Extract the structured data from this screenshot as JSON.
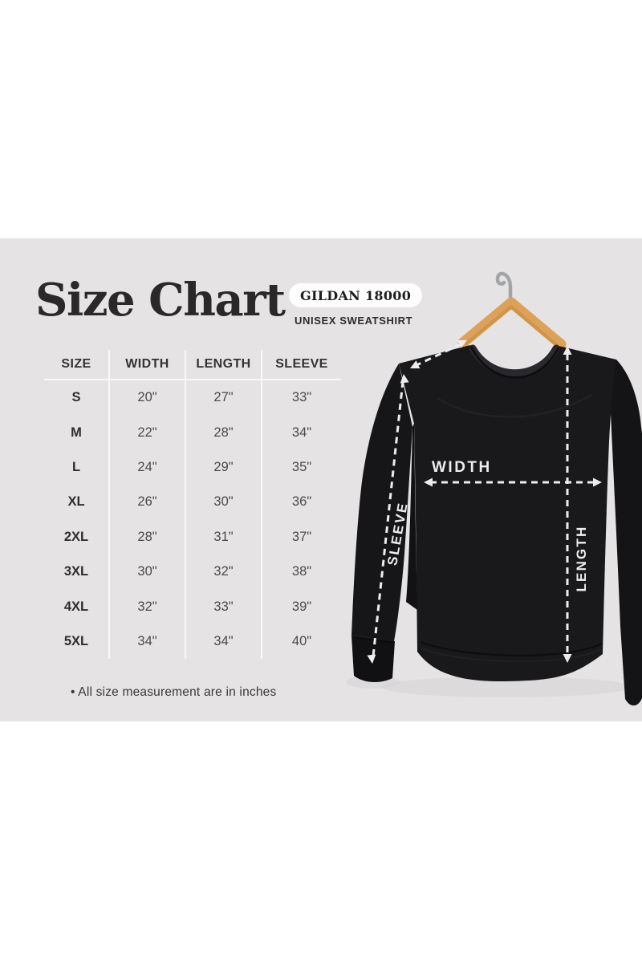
{
  "header": {
    "title": "Size Chart",
    "badge": "GILDAN 18000",
    "subtitle": "UNISEX SWEATSHIRT"
  },
  "size_table": {
    "columns": [
      "SIZE",
      "WIDTH",
      "LENGTH",
      "SLEEVE"
    ],
    "rows": [
      [
        "S",
        "20\"",
        "27\"",
        "33\""
      ],
      [
        "M",
        "22\"",
        "28\"",
        "34\""
      ],
      [
        "L",
        "24\"",
        "29\"",
        "35\""
      ],
      [
        "XL",
        "26\"",
        "30\"",
        "36\""
      ],
      [
        "2XL",
        "28\"",
        "31\"",
        "37\""
      ],
      [
        "3XL",
        "30\"",
        "32\"",
        "38\""
      ],
      [
        "4XL",
        "32\"",
        "33\"",
        "39\""
      ],
      [
        "5XL",
        "34\"",
        "34\"",
        "40\""
      ]
    ]
  },
  "footnote": "• All size measurement are in inches",
  "diagram": {
    "width_label": "WIDTH",
    "sleeve_label": "SLEEVE",
    "length_label": "LENGTH"
  },
  "colors": {
    "panel_background": "#e5e3e4",
    "ink": "#2a2829",
    "badge_background": "#fefdfe",
    "sweatshirt_black": "#19181b",
    "hanger_wood": "#dda257",
    "hook_metal": "#a4a4a6",
    "arrow_white": "#eeedee"
  },
  "chart_data": {
    "type": "table",
    "title": "Size Chart",
    "product": "GILDAN 18000 UNISEX SWEATSHIRT",
    "units": "inches",
    "columns": [
      "SIZE",
      "WIDTH",
      "LENGTH",
      "SLEEVE"
    ],
    "rows": [
      {
        "size": "S",
        "width": 20,
        "length": 27,
        "sleeve": 33
      },
      {
        "size": "M",
        "width": 22,
        "length": 28,
        "sleeve": 34
      },
      {
        "size": "L",
        "width": 24,
        "length": 29,
        "sleeve": 35
      },
      {
        "size": "XL",
        "width": 26,
        "length": 30,
        "sleeve": 36
      },
      {
        "size": "2XL",
        "width": 28,
        "length": 31,
        "sleeve": 37
      },
      {
        "size": "3XL",
        "width": 30,
        "length": 32,
        "sleeve": 38
      },
      {
        "size": "4XL",
        "width": 32,
        "length": 33,
        "sleeve": 39
      },
      {
        "size": "5XL",
        "width": 34,
        "length": 34,
        "sleeve": 40
      }
    ]
  }
}
